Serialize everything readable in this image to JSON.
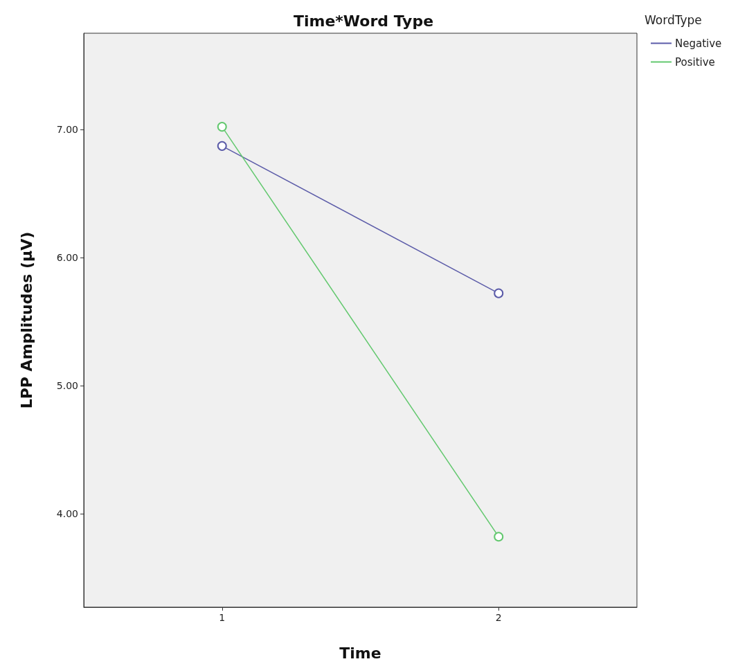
{
  "chart_data": {
    "type": "line",
    "title": "Time*Word Type",
    "xlabel": "Time",
    "ylabel": "LPP Amplitudes (μV)",
    "legend_title": "WordType",
    "categories": [
      "1",
      "2"
    ],
    "series": [
      {
        "name": "Negative",
        "color": "#5b5ba8",
        "values": [
          6.87,
          5.72
        ]
      },
      {
        "name": "Positive",
        "color": "#62c86e",
        "values": [
          7.02,
          3.82
        ]
      }
    ],
    "ylim": [
      3.27,
      7.75
    ],
    "yticks": [
      {
        "value": 4,
        "label": "4.00"
      },
      {
        "value": 5,
        "label": "5.00"
      },
      {
        "value": 6,
        "label": "6.00"
      },
      {
        "value": 7,
        "label": "7.00"
      }
    ],
    "grid": false,
    "legend": "right",
    "marker": "circle",
    "line_style": "solid"
  }
}
